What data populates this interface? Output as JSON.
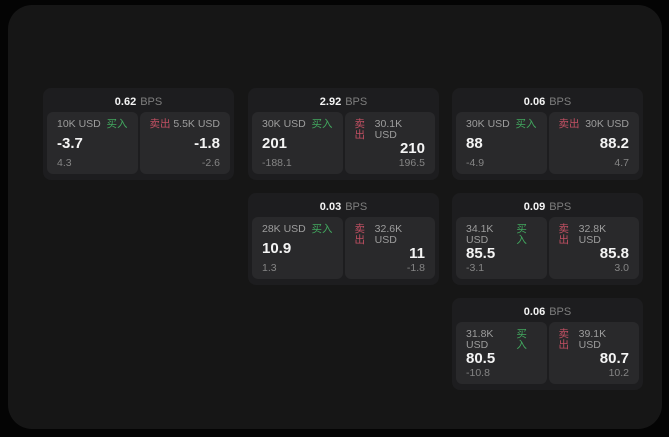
{
  "colors": {
    "buy": "#42a85f",
    "sell": "#c25063"
  },
  "labels": {
    "unit": "BPS",
    "buy": "买入",
    "sell": "卖出"
  },
  "cards": [
    {
      "bps": "0.62",
      "buy": {
        "amount": "10K USD",
        "value": "-3.7",
        "delta": "4.3"
      },
      "sell": {
        "amount": "5.5K USD",
        "value": "-1.8",
        "delta": "-2.6"
      }
    },
    {
      "bps": "2.92",
      "buy": {
        "amount": "30K USD",
        "value": "201",
        "delta": "-188.1"
      },
      "sell": {
        "amount": "30.1K USD",
        "value": "210",
        "delta": "196.5"
      }
    },
    {
      "bps": "0.06",
      "buy": {
        "amount": "30K USD",
        "value": "88",
        "delta": "-4.9"
      },
      "sell": {
        "amount": "30K USD",
        "value": "88.2",
        "delta": "4.7"
      }
    },
    {
      "bps": "0.03",
      "buy": {
        "amount": "28K USD",
        "value": "10.9",
        "delta": "1.3"
      },
      "sell": {
        "amount": "32.6K USD",
        "value": "11",
        "delta": "-1.8"
      }
    },
    {
      "bps": "0.09",
      "buy": {
        "amount": "34.1K USD",
        "value": "85.5",
        "delta": "-3.1"
      },
      "sell": {
        "amount": "32.8K USD",
        "value": "85.8",
        "delta": "3.0"
      }
    },
    {
      "bps": "0.06",
      "buy": {
        "amount": "31.8K USD",
        "value": "80.5",
        "delta": "-10.8"
      },
      "sell": {
        "amount": "39.1K USD",
        "value": "80.7",
        "delta": "10.2"
      }
    }
  ]
}
